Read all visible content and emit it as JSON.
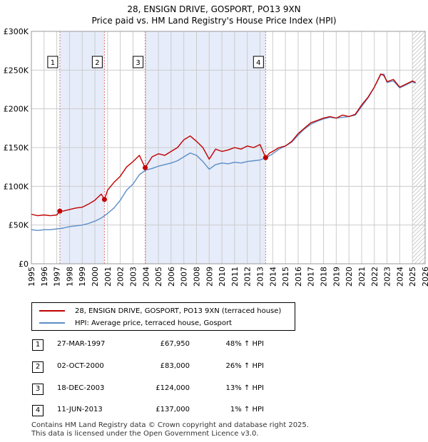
{
  "colors": {
    "price_line": "#c00000",
    "hpi_line": "#5b8dc8",
    "shade": "#e6ecf9",
    "vline": "#e07070",
    "hatch": "#bbbbbb",
    "grid": "#cccccc"
  },
  "chart_data": {
    "type": "line",
    "title": "28, ENSIGN DRIVE, GOSPORT, PO13 9XN",
    "subtitle": "Price paid vs. HM Land Registry's House Price Index (HPI)",
    "xlim": [
      1995,
      2026
    ],
    "ylim": [
      0,
      300000
    ],
    "y_ticks": [
      0,
      50000,
      100000,
      150000,
      200000,
      250000,
      300000
    ],
    "y_tick_labels": [
      "£0",
      "£50K",
      "£100K",
      "£150K",
      "£200K",
      "£250K",
      "£300K"
    ],
    "x_ticks": [
      1995,
      1996,
      1997,
      1998,
      1999,
      2000,
      2001,
      2002,
      2003,
      2004,
      2005,
      2006,
      2007,
      2008,
      2009,
      2010,
      2011,
      2012,
      2013,
      2014,
      2015,
      2016,
      2017,
      2018,
      2019,
      2020,
      2021,
      2022,
      2023,
      2024,
      2025,
      2026
    ],
    "grid": true,
    "shaded_periods": [
      [
        1997.24,
        2000.75
      ],
      [
        2003.96,
        2013.44
      ]
    ],
    "hatch_from": 2025.0,
    "series": [
      {
        "name": "28, ENSIGN DRIVE, GOSPORT, PO13 9XN (terraced house)",
        "x": [
          1995.0,
          1995.5,
          1996.0,
          1996.5,
          1997.0,
          1997.24,
          1997.5,
          1998.0,
          1998.5,
          1999.0,
          1999.5,
          2000.0,
          2000.5,
          2000.75,
          2001.0,
          2001.5,
          2002.0,
          2002.5,
          2003.0,
          2003.5,
          2003.96,
          2004.5,
          2005.0,
          2005.5,
          2006.0,
          2006.5,
          2007.0,
          2007.5,
          2008.0,
          2008.5,
          2009.0,
          2009.5,
          2010.0,
          2010.5,
          2011.0,
          2011.5,
          2012.0,
          2012.5,
          2013.0,
          2013.44,
          2013.75,
          2014.0,
          2014.5,
          2015.0,
          2015.5,
          2016.0,
          2016.5,
          2017.0,
          2017.5,
          2018.0,
          2018.5,
          2019.0,
          2019.5,
          2020.0,
          2020.5,
          2021.0,
          2021.5,
          2022.0,
          2022.5,
          2022.75,
          2023.0,
          2023.5,
          2024.0,
          2024.5,
          2025.0,
          2025.25
        ],
        "y": [
          64000,
          62000,
          63000,
          62000,
          63000,
          67950,
          68000,
          70000,
          72000,
          73000,
          77000,
          82000,
          90000,
          83000,
          95000,
          105000,
          113000,
          125000,
          132000,
          140000,
          124000,
          138000,
          142000,
          140000,
          145000,
          150000,
          160000,
          165000,
          158000,
          150000,
          135000,
          148000,
          145000,
          147000,
          150000,
          148000,
          152000,
          150000,
          154000,
          137000,
          143000,
          145000,
          150000,
          152000,
          158000,
          168000,
          175000,
          182000,
          185000,
          188000,
          190000,
          188000,
          192000,
          190000,
          193000,
          205000,
          215000,
          228000,
          245000,
          243000,
          235000,
          238000,
          228000,
          232000,
          236000,
          234000
        ]
      },
      {
        "name": "HPI: Average price, terraced house, Gosport",
        "x": [
          1995.0,
          1995.5,
          1996.0,
          1996.5,
          1997.0,
          1997.5,
          1998.0,
          1998.5,
          1999.0,
          1999.5,
          2000.0,
          2000.5,
          2001.0,
          2001.5,
          2002.0,
          2002.5,
          2003.0,
          2003.5,
          2004.0,
          2004.5,
          2005.0,
          2005.5,
          2006.0,
          2006.5,
          2007.0,
          2007.5,
          2008.0,
          2008.5,
          2009.0,
          2009.5,
          2010.0,
          2010.5,
          2011.0,
          2011.5,
          2012.0,
          2012.5,
          2013.0,
          2013.5,
          2014.0,
          2014.5,
          2015.0,
          2015.5,
          2016.0,
          2016.5,
          2017.0,
          2017.5,
          2018.0,
          2018.5,
          2019.0,
          2019.5,
          2020.0,
          2020.5,
          2021.0,
          2021.5,
          2022.0,
          2022.5,
          2022.75,
          2023.0,
          2023.5,
          2024.0,
          2024.5,
          2025.0,
          2025.25
        ],
        "y": [
          44000,
          43000,
          44000,
          44000,
          45000,
          46000,
          48000,
          49000,
          50000,
          52000,
          55000,
          59000,
          65000,
          72000,
          82000,
          95000,
          103000,
          115000,
          121000,
          123000,
          126000,
          128000,
          130000,
          133000,
          138000,
          143000,
          140000,
          132000,
          122000,
          128000,
          130000,
          129000,
          131000,
          130000,
          132000,
          133000,
          134000,
          137000,
          142000,
          148000,
          152000,
          157000,
          166000,
          174000,
          180000,
          184000,
          187000,
          189000,
          188000,
          189000,
          190000,
          192000,
          203000,
          214000,
          228000,
          244000,
          245000,
          234000,
          236000,
          227000,
          231000,
          235000,
          233000
        ]
      }
    ],
    "markers": [
      {
        "label": "1",
        "x": 1997.24,
        "y": 67950
      },
      {
        "label": "2",
        "x": 2000.75,
        "y": 83000
      },
      {
        "label": "3",
        "x": 2003.96,
        "y": 124000
      },
      {
        "label": "4",
        "x": 2013.44,
        "y": 137000
      }
    ]
  },
  "legend": {
    "price_label": "28, ENSIGN DRIVE, GOSPORT, PO13 9XN (terraced house)",
    "hpi_label": "HPI: Average price, terraced house, Gosport"
  },
  "sales": [
    {
      "num": "1",
      "date": "27-MAR-1997",
      "price": "£67,950",
      "diff": "48% ↑ HPI"
    },
    {
      "num": "2",
      "date": "02-OCT-2000",
      "price": "£83,000",
      "diff": "26% ↑ HPI"
    },
    {
      "num": "3",
      "date": "18-DEC-2003",
      "price": "£124,000",
      "diff": "13% ↑ HPI"
    },
    {
      "num": "4",
      "date": "11-JUN-2013",
      "price": "£137,000",
      "diff": "1% ↑ HPI"
    }
  ],
  "footer": {
    "line1": "Contains HM Land Registry data © Crown copyright and database right 2025.",
    "line2": "This data is licensed under the Open Government Licence v3.0."
  }
}
